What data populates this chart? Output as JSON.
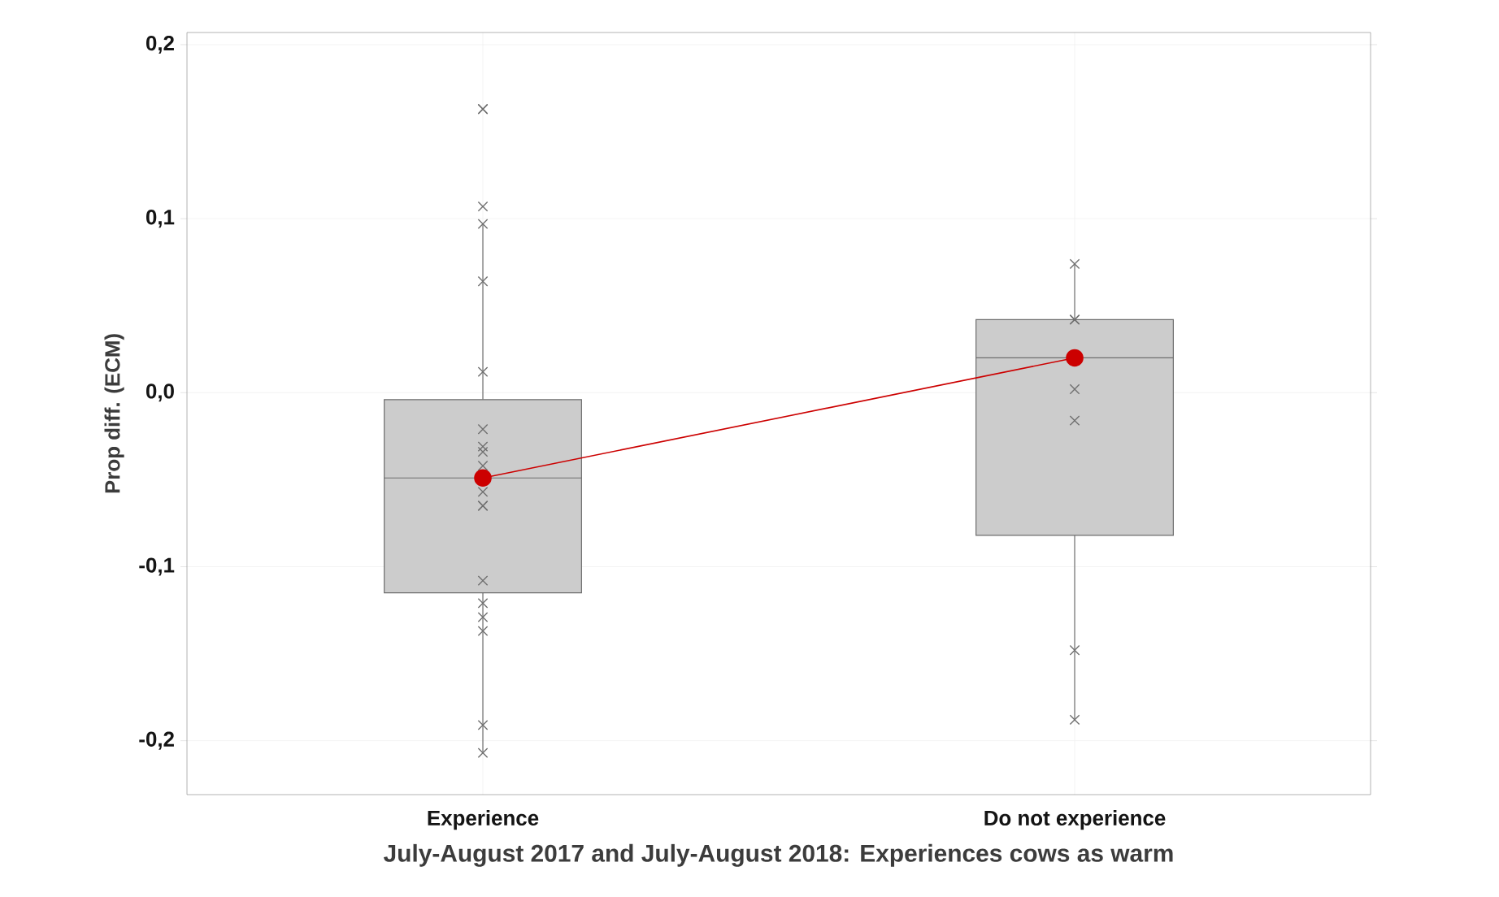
{
  "chart_data": {
    "type": "box",
    "xlabel": "July-August 2017 and July-August 2018: Experiences cows as warm",
    "ylabel": "Prop diff. (ECM)",
    "categories": [
      "Experience",
      "Do not experience"
    ],
    "ylim": [
      -0.231,
      0.207
    ],
    "yticks": [
      {
        "value": -0.2,
        "label": "-0,2"
      },
      {
        "value": -0.1,
        "label": "-0,1"
      },
      {
        "value": 0.0,
        "label": "0,0"
      },
      {
        "value": 0.1,
        "label": "0,1"
      },
      {
        "value": 0.2,
        "label": "0,2"
      }
    ],
    "grid": true,
    "series": [
      {
        "color": "#cccccc",
        "boxes": [
          {
            "low": -0.207,
            "q1": -0.115,
            "median": -0.049,
            "q3": -0.004,
            "high": 0.097
          },
          {
            "low": -0.188,
            "q1": -0.082,
            "median": 0.02,
            "q3": 0.042,
            "high": 0.074
          }
        ]
      },
      {
        "type": "scatter",
        "marker": "cross",
        "color": "#707070",
        "x": [
          "Experience",
          "Experience",
          "Experience",
          "Experience",
          "Experience",
          "Experience",
          "Experience",
          "Experience",
          "Experience",
          "Experience",
          "Experience",
          "Experience",
          "Experience",
          "Experience",
          "Experience",
          "Experience",
          "Experience",
          "Experience",
          "Experience",
          "Do not experience",
          "Do not experience",
          "Do not experience",
          "Do not experience",
          "Do not experience",
          "Do not experience",
          "Do not experience"
        ],
        "values": [
          0.163,
          0.163,
          0.107,
          0.097,
          0.064,
          0.012,
          -0.021,
          -0.031,
          -0.034,
          -0.042,
          -0.057,
          -0.065,
          -0.065,
          -0.108,
          -0.121,
          -0.129,
          -0.137,
          -0.191,
          -0.207,
          0.074,
          0.042,
          0.042,
          0.002,
          -0.016,
          -0.148,
          -0.188
        ]
      },
      {
        "type": "line",
        "marker": "circle",
        "color": "#cc0000",
        "x": [
          "Experience",
          "Do not experience"
        ],
        "values": [
          -0.049,
          0.02
        ]
      }
    ]
  }
}
